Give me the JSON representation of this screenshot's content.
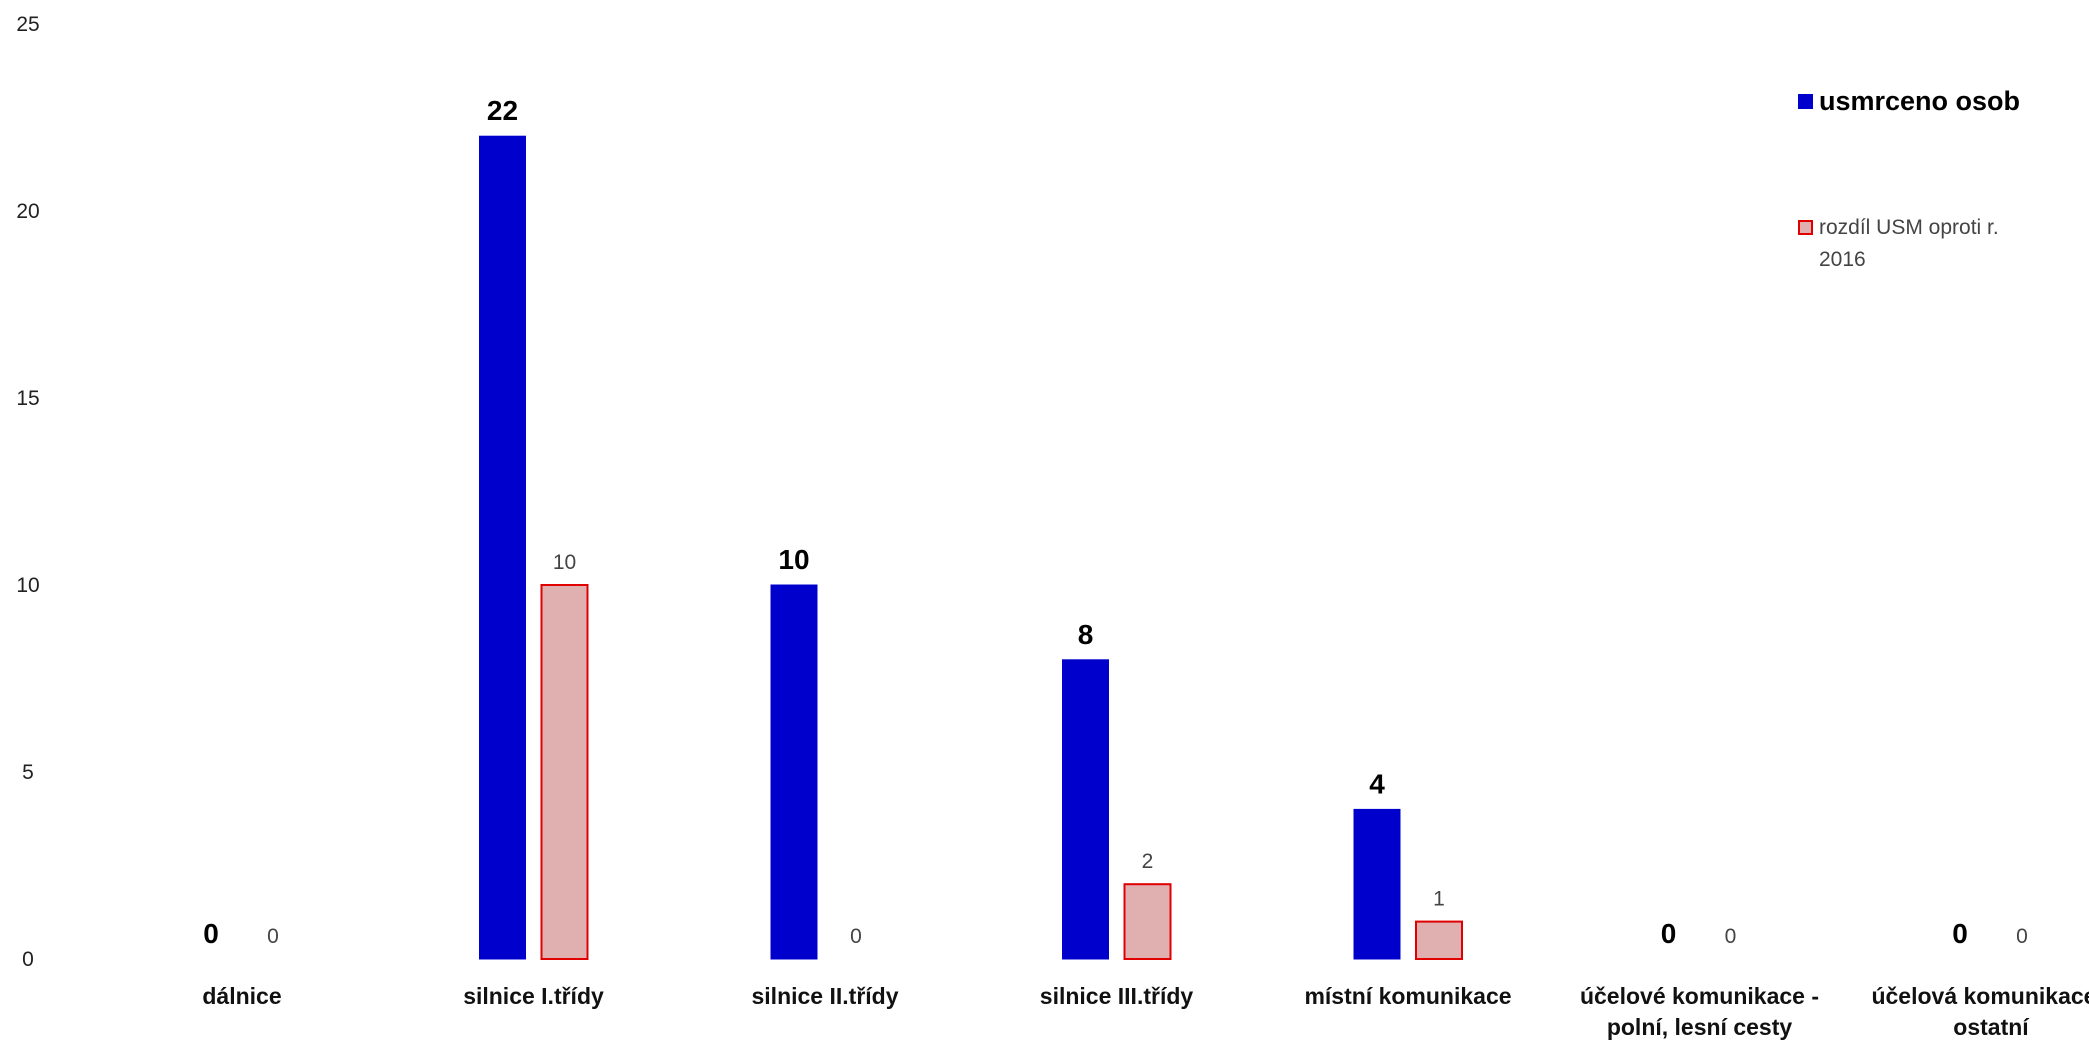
{
  "chart_data": {
    "type": "bar",
    "categories": [
      [
        "dálnice"
      ],
      [
        "silnice I.třídy"
      ],
      [
        "silnice II.třídy"
      ],
      [
        "silnice III.třídy"
      ],
      [
        "místní komunikace"
      ],
      [
        "účelové komunikace -",
        "polní, lesní cesty"
      ],
      [
        "účelová komunikace -",
        "ostatní"
      ]
    ],
    "series": [
      {
        "name": "usmrceno osob",
        "values": [
          0,
          22,
          10,
          8,
          4,
          0,
          0
        ],
        "color": "#0000CC",
        "stroke": "#0000CC"
      },
      {
        "name": "rozdíl USM oproti r. 2016",
        "values": [
          0,
          10,
          0,
          2,
          1,
          0,
          0
        ],
        "color": "#E0B0B0",
        "stroke": "#E00000"
      }
    ],
    "yticks": [
      "0",
      "5",
      "10",
      "15",
      "20",
      "25"
    ],
    "ylim": [
      0,
      25
    ],
    "grid": false,
    "legend_position": "top-right"
  }
}
